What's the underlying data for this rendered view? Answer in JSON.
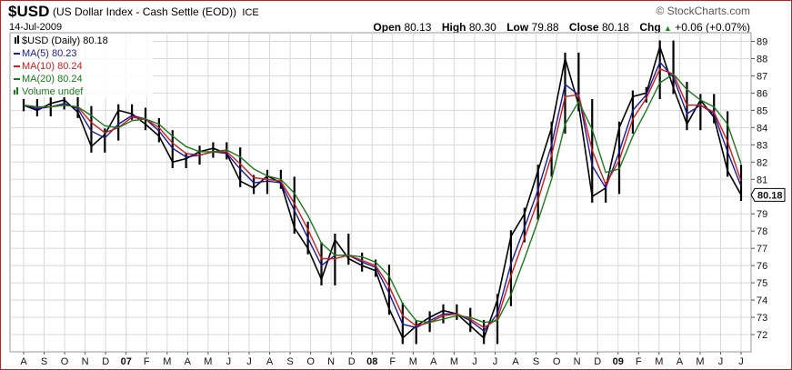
{
  "header": {
    "symbol": "$USD",
    "description": "(US Dollar Index - Cash Settle (EOD))",
    "exchange": "ICE",
    "date": "14-Jul-2009",
    "brand": "© StockCharts.com",
    "open_label": "Open",
    "open": "80.13",
    "high_label": "High",
    "high": "80.30",
    "low_label": "Low",
    "low": "79.88",
    "close_label": "Close",
    "close": "80.18",
    "chg_label": "Chg",
    "chg": "+0.06 (+0.07%)",
    "chg_arrow": "▲"
  },
  "legend": [
    {
      "text": "$USD (Daily) 80.18",
      "color": "#000000",
      "icon": "candle-icon"
    },
    {
      "text": "MA(5) 80.23",
      "color": "#1a1a9a",
      "icon": "line-icon"
    },
    {
      "text": "MA(10) 80.24",
      "color": "#d01c1c",
      "icon": "line-icon"
    },
    {
      "text": "MA(20) 80.24",
      "color": "#1a7a1a",
      "icon": "line-icon"
    },
    {
      "text": "Volume undef",
      "color": "#1a7a1a",
      "icon": "volume-bars-icon"
    }
  ],
  "chart_data": {
    "type": "line",
    "y_ticks": [
      72,
      73,
      74,
      75,
      76,
      77,
      78,
      79,
      80,
      81,
      82,
      83,
      84,
      85,
      86,
      87,
      88,
      89
    ],
    "ylim": [
      71,
      89.5
    ],
    "last_value_label": "80.18",
    "x_month_labels": [
      "A",
      "S",
      "O",
      "N",
      "D",
      "07",
      "F",
      "M",
      "A",
      "M",
      "J",
      "J",
      "A",
      "S",
      "O",
      "N",
      "D",
      "08",
      "F",
      "M",
      "A",
      "M",
      "J",
      "J",
      "A",
      "S",
      "O",
      "N",
      "D",
      "09",
      "F",
      "M",
      "A",
      "M",
      "J",
      "J"
    ],
    "grid": true,
    "colors": {
      "price": "#000000",
      "ma5": "#1a1a9a",
      "ma10": "#d01c1c",
      "ma20": "#1a7a1a",
      "grid": "#d8d8d8",
      "frame": "#d01c1c"
    },
    "series": [
      {
        "name": "$USD (Daily)",
        "values": [
          85.3,
          85.0,
          85.4,
          85.6,
          84.9,
          82.9,
          83.6,
          85.0,
          84.8,
          84.2,
          83.5,
          82.0,
          82.2,
          82.6,
          82.8,
          82.5,
          80.9,
          80.5,
          81.2,
          80.8,
          78.2,
          77.0,
          75.2,
          77.5,
          76.4,
          76.0,
          75.7,
          73.5,
          71.8,
          72.5,
          73.0,
          73.4,
          73.2,
          72.5,
          71.8,
          74.0,
          77.7,
          79.0,
          81.5,
          84.0,
          88.0,
          85.3,
          80.0,
          80.5,
          84.0,
          85.8,
          86.0,
          88.7,
          86.3,
          84.2,
          85.6,
          84.6,
          81.5,
          80.1
        ]
      },
      {
        "name": "MA(5)",
        "values": [
          85.3,
          85.1,
          85.2,
          85.4,
          85.1,
          83.8,
          83.4,
          84.2,
          84.7,
          84.5,
          83.8,
          82.8,
          82.3,
          82.4,
          82.6,
          82.5,
          81.6,
          80.8,
          80.9,
          80.8,
          79.2,
          77.6,
          76.0,
          76.6,
          76.6,
          76.2,
          75.9,
          74.4,
          72.6,
          72.4,
          72.8,
          73.2,
          73.2,
          72.8,
          72.2,
          73.2,
          76.1,
          78.2,
          80.4,
          83.0,
          86.5,
          85.9,
          81.8,
          80.5,
          82.6,
          85.0,
          85.9,
          87.8,
          86.9,
          84.8,
          85.3,
          84.8,
          82.6,
          80.6
        ]
      },
      {
        "name": "MA(10)",
        "values": [
          85.3,
          85.2,
          85.2,
          85.3,
          85.2,
          84.3,
          83.7,
          84.0,
          84.6,
          84.5,
          84.0,
          83.1,
          82.5,
          82.4,
          82.6,
          82.6,
          81.9,
          81.1,
          81.0,
          80.9,
          79.6,
          78.1,
          76.4,
          76.4,
          76.6,
          76.3,
          76.0,
          74.8,
          73.1,
          72.5,
          72.7,
          73.1,
          73.2,
          72.9,
          72.4,
          72.9,
          75.4,
          77.6,
          79.8,
          82.4,
          85.8,
          85.9,
          82.7,
          80.7,
          82.1,
          84.5,
          85.7,
          87.4,
          87.1,
          85.3,
          85.3,
          84.9,
          83.2,
          80.9
        ]
      },
      {
        "name": "MA(20)",
        "values": [
          85.3,
          85.2,
          85.2,
          85.3,
          85.2,
          84.7,
          84.1,
          84.0,
          84.4,
          84.5,
          84.2,
          83.5,
          82.9,
          82.6,
          82.6,
          82.7,
          82.3,
          81.6,
          81.2,
          81.0,
          80.2,
          78.9,
          77.3,
          76.6,
          76.6,
          76.5,
          76.2,
          75.4,
          73.8,
          72.8,
          72.7,
          72.9,
          73.1,
          73.0,
          72.7,
          72.8,
          74.3,
          76.4,
          78.6,
          81.0,
          84.2,
          85.5,
          83.9,
          81.4,
          81.6,
          83.5,
          85.0,
          86.6,
          87.1,
          86.2,
          85.6,
          85.2,
          84.2,
          81.9
        ]
      }
    ]
  }
}
